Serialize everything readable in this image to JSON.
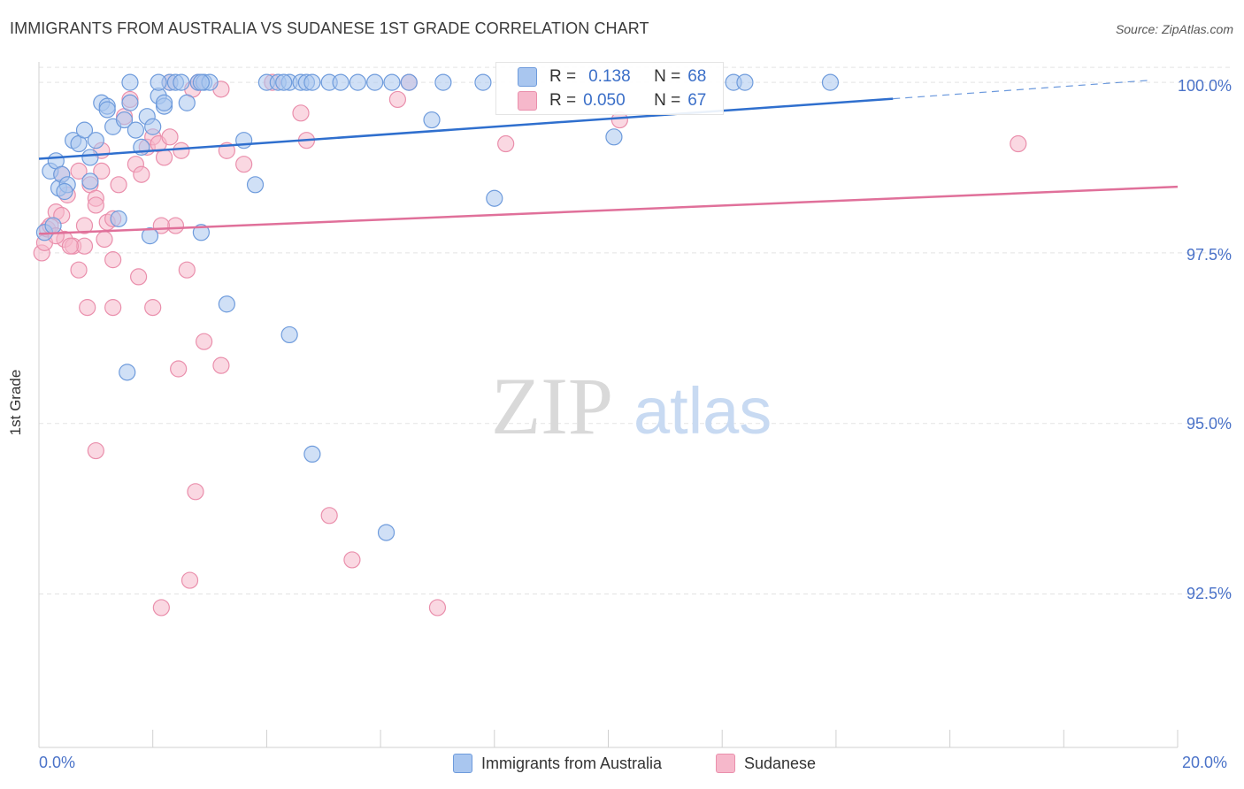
{
  "title": "IMMIGRANTS FROM AUSTRALIA VS SUDANESE 1ST GRADE CORRELATION CHART",
  "source": "Source: ZipAtlas.com",
  "watermark": {
    "zip": "ZIP",
    "atlas": "atlas"
  },
  "legend": {
    "r_label": "R =",
    "n_label": "N =",
    "rows": [
      {
        "r": "0.138",
        "n": "68"
      },
      {
        "r": "0.050",
        "n": "67"
      }
    ]
  },
  "bottom_legend": [
    "Immigrants from Australia",
    "Sudanese"
  ],
  "colors": {
    "blue_fill": "#a9c6ef",
    "blue_stroke": "#6e9bdc",
    "blue_line": "#2f6fce",
    "pink_fill": "#f6b8cb",
    "pink_stroke": "#ea8fac",
    "pink_line": "#e0709a",
    "tick_text": "#4a72c8"
  },
  "chart_data": {
    "type": "scatter",
    "title": "IMMIGRANTS FROM AUSTRALIA VS SUDANESE 1ST GRADE CORRELATION CHART",
    "xlabel": "",
    "ylabel": "1st Grade",
    "xlim": [
      0,
      20
    ],
    "ylim": [
      90.25,
      100.3
    ],
    "x_tick_labels": [
      "0.0%",
      "20.0%"
    ],
    "y_ticks": [
      92.5,
      95.0,
      97.5,
      100.0
    ],
    "y_tick_labels": [
      "92.5%",
      "95.0%",
      "97.5%",
      "100.0%"
    ],
    "grid": true,
    "series": [
      {
        "name": "Immigrants from Australia",
        "trend": {
          "x0": 0,
          "y0": 98.88,
          "x1": 15.0,
          "y1": 99.76,
          "dash_to_x": 19.5,
          "dash_to_y": 100.03
        },
        "points": [
          [
            0.1,
            97.8
          ],
          [
            0.2,
            98.7
          ],
          [
            0.3,
            98.85
          ],
          [
            0.35,
            98.45
          ],
          [
            0.4,
            98.65
          ],
          [
            0.5,
            98.5
          ],
          [
            0.6,
            99.15
          ],
          [
            0.7,
            99.1
          ],
          [
            0.8,
            99.3
          ],
          [
            0.9,
            98.9
          ],
          [
            1.0,
            99.15
          ],
          [
            1.1,
            99.7
          ],
          [
            1.2,
            99.65
          ],
          [
            1.3,
            99.35
          ],
          [
            1.4,
            98.0
          ],
          [
            1.5,
            99.45
          ],
          [
            1.6,
            99.7
          ],
          [
            1.7,
            99.3
          ],
          [
            1.8,
            99.05
          ],
          [
            1.9,
            99.5
          ],
          [
            2.0,
            99.35
          ],
          [
            2.1,
            99.8
          ],
          [
            2.2,
            99.65
          ],
          [
            2.3,
            100.0
          ],
          [
            2.4,
            100.0
          ],
          [
            2.5,
            100.0
          ],
          [
            2.6,
            99.7
          ],
          [
            2.8,
            100.0
          ],
          [
            2.9,
            100.0
          ],
          [
            3.0,
            100.0
          ],
          [
            1.6,
            100.0
          ],
          [
            2.1,
            100.0
          ],
          [
            2.2,
            99.7
          ],
          [
            3.6,
            99.15
          ],
          [
            3.8,
            98.5
          ],
          [
            4.0,
            100.0
          ],
          [
            4.2,
            100.0
          ],
          [
            4.4,
            100.0
          ],
          [
            4.6,
            100.0
          ],
          [
            4.7,
            100.0
          ],
          [
            4.8,
            100.0
          ],
          [
            5.1,
            100.0
          ],
          [
            5.3,
            100.0
          ],
          [
            5.6,
            100.0
          ],
          [
            5.9,
            100.0
          ],
          [
            6.2,
            100.0
          ],
          [
            6.5,
            100.0
          ],
          [
            7.1,
            100.0
          ],
          [
            6.9,
            99.45
          ],
          [
            7.8,
            100.0
          ],
          [
            8.0,
            98.3
          ],
          [
            10.1,
            99.2
          ],
          [
            12.2,
            100.0
          ],
          [
            12.4,
            100.0
          ],
          [
            13.9,
            100.0
          ],
          [
            4.3,
            100.0
          ],
          [
            2.85,
            100.0
          ],
          [
            1.95,
            97.75
          ],
          [
            2.85,
            97.8
          ],
          [
            3.3,
            96.75
          ],
          [
            1.55,
            95.75
          ],
          [
            4.4,
            96.3
          ],
          [
            4.8,
            94.55
          ],
          [
            6.1,
            93.4
          ],
          [
            0.25,
            97.9
          ],
          [
            0.45,
            98.4
          ],
          [
            0.9,
            98.55
          ],
          [
            1.2,
            99.6
          ]
        ]
      },
      {
        "name": "Sudanese",
        "trend": {
          "x0": 0,
          "y0": 97.78,
          "x1": 20,
          "y1": 98.47
        },
        "points": [
          [
            0.05,
            97.5
          ],
          [
            0.1,
            97.65
          ],
          [
            0.15,
            97.85
          ],
          [
            0.2,
            97.9
          ],
          [
            0.3,
            98.1
          ],
          [
            0.4,
            98.05
          ],
          [
            0.45,
            97.7
          ],
          [
            0.5,
            98.35
          ],
          [
            0.6,
            97.6
          ],
          [
            0.7,
            97.25
          ],
          [
            0.8,
            97.6
          ],
          [
            0.9,
            98.5
          ],
          [
            1.0,
            98.3
          ],
          [
            1.1,
            98.7
          ],
          [
            1.2,
            97.95
          ],
          [
            1.3,
            97.4
          ],
          [
            1.4,
            98.5
          ],
          [
            1.5,
            99.5
          ],
          [
            1.6,
            99.75
          ],
          [
            1.7,
            98.8
          ],
          [
            1.8,
            98.65
          ],
          [
            1.9,
            99.05
          ],
          [
            2.0,
            99.2
          ],
          [
            2.1,
            99.1
          ],
          [
            2.2,
            98.9
          ],
          [
            2.3,
            99.2
          ],
          [
            2.4,
            97.9
          ],
          [
            2.5,
            99.0
          ],
          [
            2.6,
            97.25
          ],
          [
            2.7,
            99.9
          ],
          [
            2.8,
            100.0
          ],
          [
            3.2,
            99.9
          ],
          [
            3.6,
            98.8
          ],
          [
            3.3,
            99.0
          ],
          [
            1.1,
            99.0
          ],
          [
            1.3,
            98.0
          ],
          [
            0.4,
            98.65
          ],
          [
            0.8,
            97.9
          ],
          [
            1.15,
            97.7
          ],
          [
            1.75,
            97.15
          ],
          [
            2.15,
            97.9
          ],
          [
            2.0,
            96.7
          ],
          [
            2.45,
            95.8
          ],
          [
            2.9,
            96.2
          ],
          [
            3.2,
            95.85
          ],
          [
            0.85,
            96.7
          ],
          [
            1.3,
            96.7
          ],
          [
            1.0,
            94.6
          ],
          [
            2.75,
            94.0
          ],
          [
            2.15,
            92.3
          ],
          [
            2.65,
            92.7
          ],
          [
            5.1,
            93.65
          ],
          [
            5.5,
            93.0
          ],
          [
            7.0,
            92.3
          ],
          [
            4.6,
            99.55
          ],
          [
            4.7,
            99.15
          ],
          [
            6.3,
            99.75
          ],
          [
            8.2,
            99.1
          ],
          [
            6.5,
            100.0
          ],
          [
            10.2,
            99.45
          ],
          [
            17.2,
            99.1
          ],
          [
            2.3,
            100.0
          ],
          [
            4.1,
            100.0
          ],
          [
            0.3,
            97.75
          ],
          [
            0.55,
            97.6
          ],
          [
            1.0,
            98.2
          ],
          [
            0.7,
            98.7
          ]
        ]
      }
    ]
  }
}
